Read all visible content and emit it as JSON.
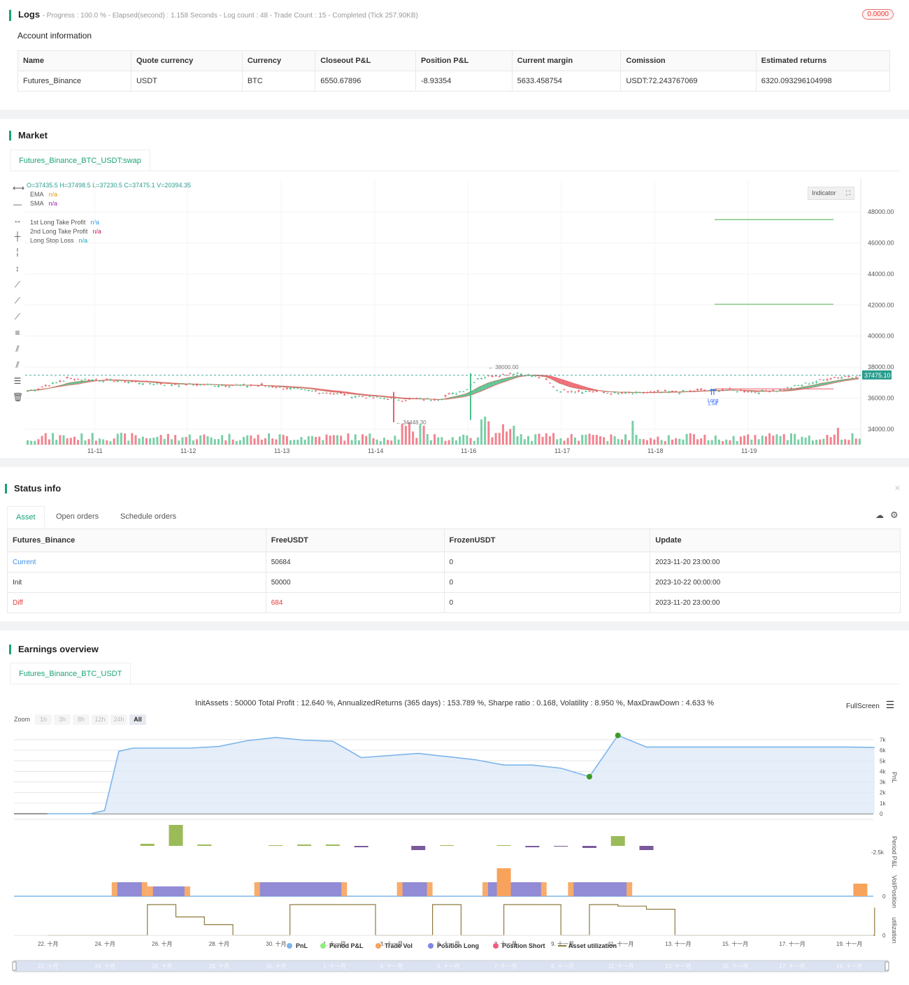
{
  "logs": {
    "title": "Logs",
    "progress_text": "- Progress : 100.0 % - Elapsed(second) : 1.158  Seconds - Log count : 48 - Trade Count : 15 - Completed (Tick 257.90KB)",
    "badge": "0.0000"
  },
  "account": {
    "title": "Account information",
    "headers": [
      "Name",
      "Quote currency",
      "Currency",
      "Closeout P&L",
      "Position P&L",
      "Current margin",
      "Comission",
      "Estimated returns"
    ],
    "row": [
      "Futures_Binance",
      "USDT",
      "BTC",
      "6550.67896",
      "-8.93354",
      "5633.458754",
      "USDT:72.243767069",
      "6320.093296104998"
    ]
  },
  "market": {
    "title": "Market",
    "tab": "Futures_Binance_BTC_USDT:swap",
    "ohlc": "O=37435.5 H=37498.5 L=37230.5 C=37475.1 V=20394.35",
    "legend": [
      {
        "label": "EMA",
        "value": "n/a",
        "color": "#e69a00"
      },
      {
        "label": "SMA",
        "value": "n/a",
        "color": "#9c27b0"
      },
      {
        "label": "1st Long Take Profit",
        "value": "n/a",
        "color": "#2196f3"
      },
      {
        "label": "2nd Long Take Profit",
        "value": "n/a",
        "color": "#c2185b"
      },
      {
        "label": "Long Stop Loss",
        "value": "n/a",
        "color": "#00acc1"
      }
    ],
    "indicator_btn": "Indicator",
    "y_ticks": [
      "48000.00",
      "46000.00",
      "44000.00",
      "42000.00",
      "40000.00",
      "38000.00",
      "36000.00",
      "34000.00"
    ],
    "x_ticks": [
      "11-11",
      "11-12",
      "11-13",
      "11-14",
      "11-16",
      "11-17",
      "11-18",
      "11-19"
    ],
    "last_price": "37475.10",
    "high_label": "38000.00",
    "low_label": "34448.30",
    "trade_label_1": "Long",
    "trade_label_2": "1.54",
    "colors": {
      "bull": "#4cbf8a",
      "bear": "#ef5a6a",
      "accent": "#1aa37a"
    }
  },
  "status": {
    "title": "Status info",
    "tabs": [
      "Asset",
      "Open orders",
      "Schedule orders"
    ],
    "headers": [
      "Futures_Binance",
      "FreeUSDT",
      "FrozenUSDT",
      "Update"
    ],
    "rows": [
      {
        "name": "Current",
        "free": "50684",
        "frozen": "0",
        "update": "2023-11-20 23:00:00",
        "color": "#3a8ee6"
      },
      {
        "name": "Init",
        "free": "50000",
        "frozen": "0",
        "update": "2023-10-22 00:00:00",
        "color": "#333"
      },
      {
        "name": "Diff",
        "free": "684",
        "frozen": "0",
        "update": "2023-11-20 23:00:00",
        "color": "#e53935"
      }
    ]
  },
  "earnings": {
    "title": "Earnings overview",
    "tab": "Futures_Binance_BTC_USDT",
    "summary": "InitAssets : 50000 Total Profit : 12.640 %, AnnualizedReturns (365 days) : 153.789 %, Sharpe ratio : 0.168, Volatility : 8.950 %, MaxDrawDown : 4.633 %",
    "fullscreen": "FullScreen",
    "zoom_label": "Zoom",
    "zoom_options": [
      "1h",
      "3h",
      "8h",
      "12h",
      "24h",
      "All"
    ],
    "pnl_ticks": [
      "7k",
      "6k",
      "5k",
      "4k",
      "3k",
      "2k",
      "1k",
      "0"
    ],
    "period_tick": "-2.5k",
    "vol_tick": "0",
    "util_tick": "0",
    "axis_labels": [
      "PnL",
      "Period P&L",
      "Vol/Position",
      "utilization"
    ],
    "x_ticks": [
      "22. 十月",
      "24. 十月",
      "26. 十月",
      "28. 十月",
      "30. 十月",
      "1. 十一月",
      "3. 十一月",
      "5. 十一月",
      "7. 十一月",
      "9. 十一月",
      "11. 十一月",
      "13. 十一月",
      "15. 十一月",
      "17. 十一月",
      "19. 十一月"
    ],
    "legend": [
      {
        "label": "PnL",
        "color": "#7cb5ec"
      },
      {
        "label": "Period P&L",
        "color": "#90ed7d"
      },
      {
        "label": "Trade Vol",
        "color": "#f7a35c"
      },
      {
        "label": "Position Long",
        "color": "#8085e9"
      },
      {
        "label": "Position Short",
        "color": "#f15c80"
      },
      {
        "label": "Asset utilization",
        "color": "#8d7a3c"
      }
    ]
  }
}
